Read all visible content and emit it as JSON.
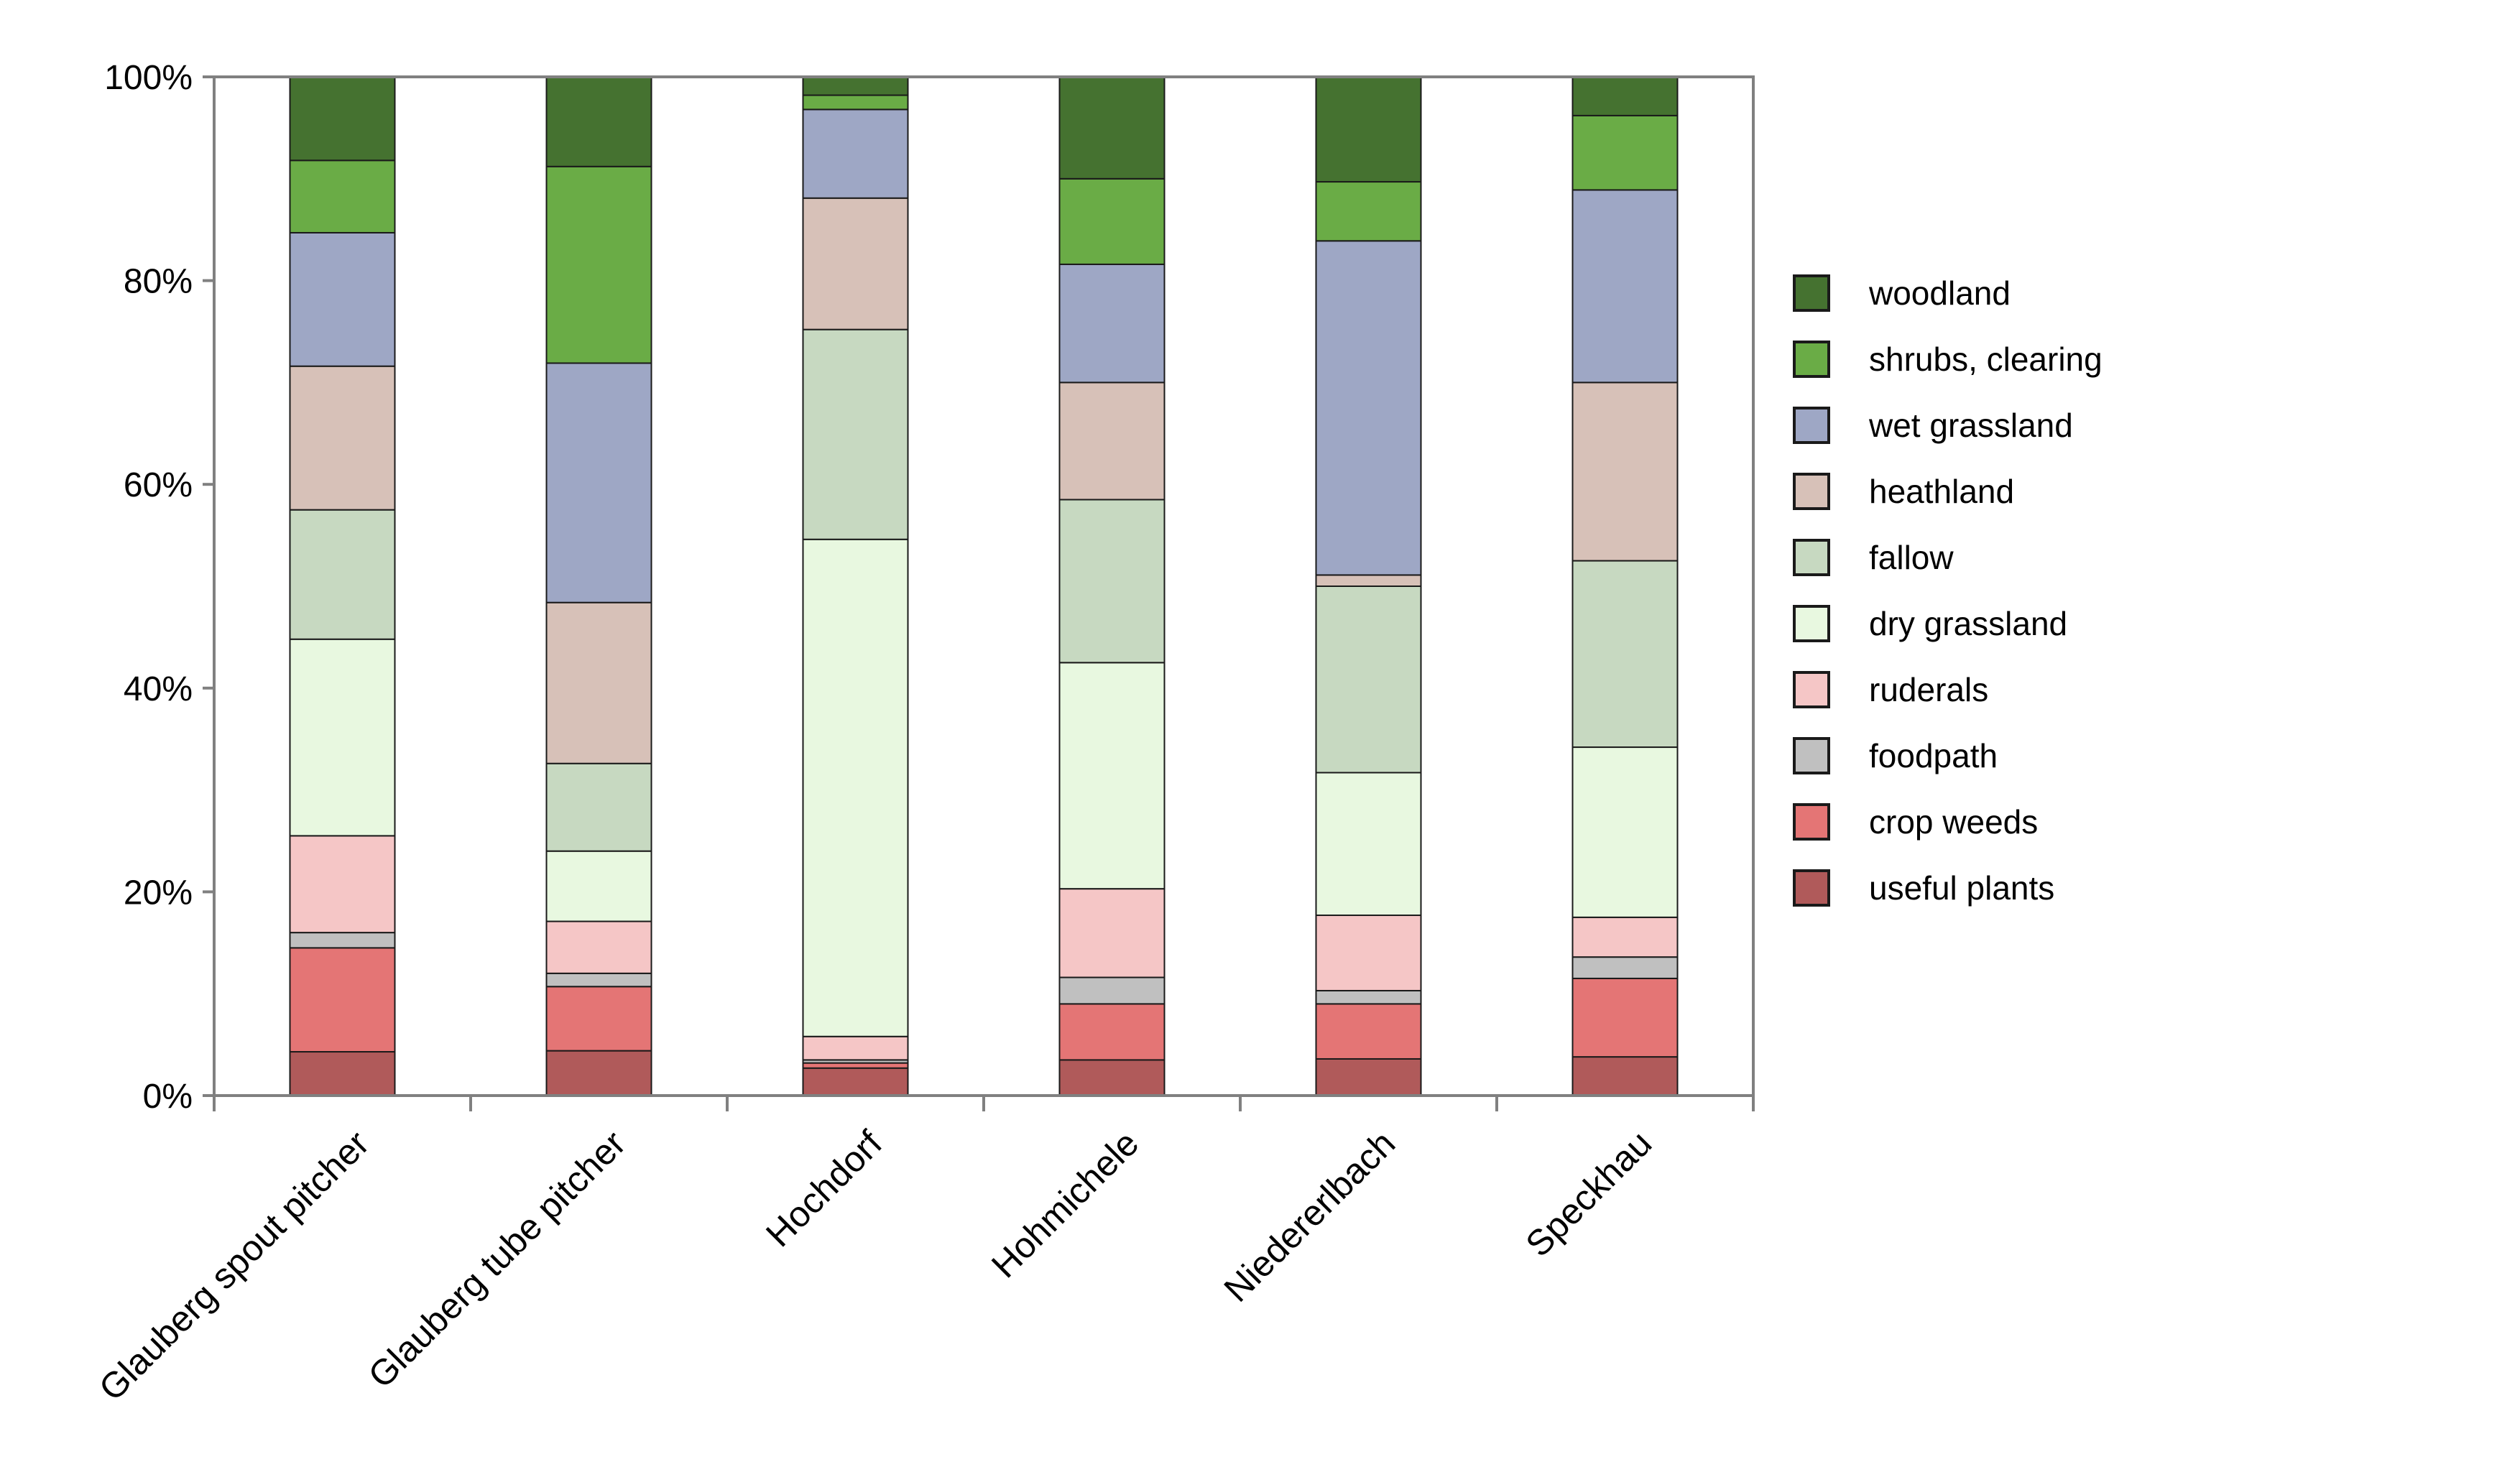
{
  "chart_data": {
    "type": "bar",
    "stacked": "percent",
    "title": "",
    "xlabel": "",
    "ylabel": "",
    "ylim": [
      0,
      100
    ],
    "y_ticks": [
      0,
      20,
      40,
      60,
      80,
      100
    ],
    "y_tick_labels": [
      "0%",
      "20%",
      "40%",
      "60%",
      "80%",
      "100%"
    ],
    "grid": false,
    "legend_position": "right",
    "categories": [
      "Glauberg spout pitcher",
      "Glauberg tube pitcher",
      "Hochdorf",
      "Hohmichele",
      "Niedererlbach",
      "Speckhau"
    ],
    "series": [
      {
        "name": "useful plants",
        "color": "#b05a5a",
        "values": [
          4.3,
          4.4,
          2.7,
          3.5,
          3.6,
          3.8
        ]
      },
      {
        "name": "crop weeds",
        "color": "#e47575",
        "values": [
          10.2,
          6.3,
          0.5,
          5.5,
          5.4,
          7.7
        ]
      },
      {
        "name": "foodpath",
        "color": "#c0c0c0",
        "values": [
          1.5,
          1.3,
          0.3,
          2.6,
          1.3,
          2.1
        ]
      },
      {
        "name": "ruderals",
        "color": "#f5c6c6",
        "values": [
          9.5,
          5.1,
          2.3,
          8.7,
          7.4,
          3.9
        ]
      },
      {
        "name": "dry grassland",
        "color": "#e8f8e0",
        "values": [
          19.3,
          6.9,
          48.8,
          22.2,
          14.0,
          16.7
        ]
      },
      {
        "name": "fallow",
        "color": "#c7d9c1",
        "values": [
          12.7,
          8.6,
          20.6,
          16.0,
          18.3,
          18.3
        ]
      },
      {
        "name": "heathland",
        "color": "#d7c1b8",
        "values": [
          14.1,
          15.8,
          12.9,
          11.5,
          1.1,
          17.5
        ]
      },
      {
        "name": "wet grassland",
        "color": "#9ea7c5",
        "values": [
          13.1,
          23.5,
          8.7,
          11.6,
          32.8,
          18.9
        ]
      },
      {
        "name": "shrubs, clearing",
        "color": "#6aac46",
        "values": [
          7.1,
          19.3,
          1.4,
          8.4,
          5.8,
          7.3
        ]
      },
      {
        "name": "woodland",
        "color": "#457230",
        "values": [
          8.2,
          8.8,
          1.8,
          10.0,
          10.3,
          3.8
        ]
      }
    ]
  }
}
